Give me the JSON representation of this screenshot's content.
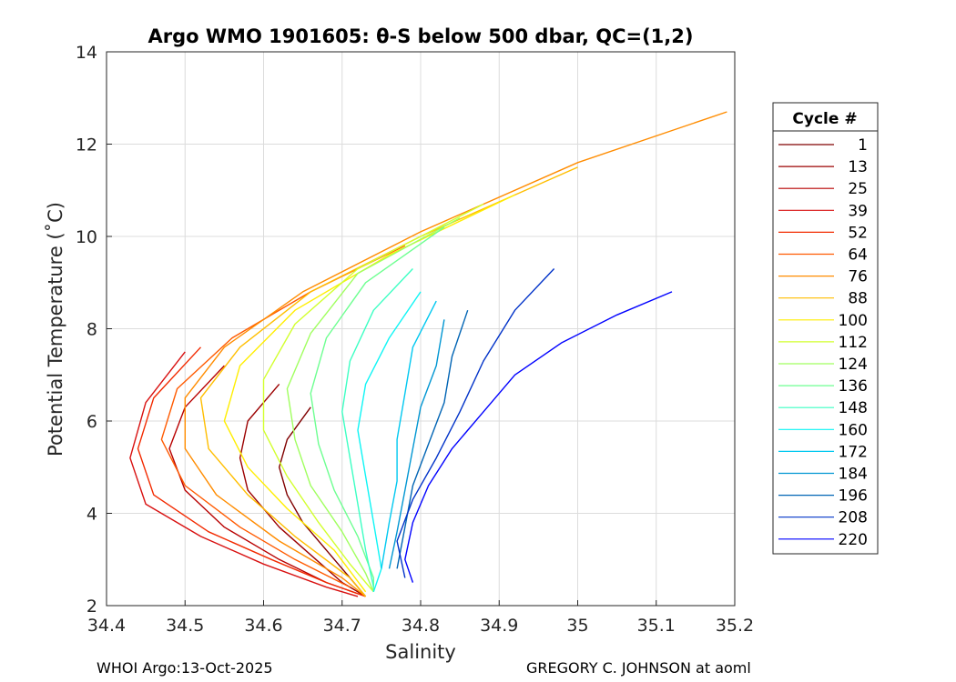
{
  "chart_data": {
    "type": "line",
    "title": "Argo WMO 1901605: θ-S below 500 dbar,  QC=(1,2)",
    "xlabel": "Salinity",
    "ylabel": "Potential Temperature (˚C)",
    "xlim": [
      34.4,
      35.2
    ],
    "ylim": [
      2,
      14
    ],
    "xticks": [
      34.4,
      34.5,
      34.6,
      34.7,
      34.8,
      34.9,
      35.0,
      35.1,
      35.2
    ],
    "xtick_labels": [
      "34.4",
      "34.5",
      "34.6",
      "34.7",
      "34.8",
      "34.9",
      "35",
      "35.1",
      "35.2"
    ],
    "yticks": [
      2,
      4,
      6,
      8,
      10,
      12,
      14
    ],
    "ytick_labels": [
      "2",
      "4",
      "6",
      "8",
      "10",
      "12",
      "14"
    ],
    "grid": true,
    "legend": {
      "title": "Cycle #",
      "placement": "right-outside",
      "entries": [
        {
          "label": "1",
          "color": "#800000"
        },
        {
          "label": "13",
          "color": "#9b0000"
        },
        {
          "label": "25",
          "color": "#b80000"
        },
        {
          "label": "39",
          "color": "#d81010"
        },
        {
          "label": "52",
          "color": "#f22a00"
        },
        {
          "label": "64",
          "color": "#ff5a00"
        },
        {
          "label": "76",
          "color": "#ff8c00"
        },
        {
          "label": "88",
          "color": "#ffbe00"
        },
        {
          "label": "100",
          "color": "#ffee00"
        },
        {
          "label": "112",
          "color": "#d2ff2d"
        },
        {
          "label": "124",
          "color": "#a0ff5f"
        },
        {
          "label": "136",
          "color": "#6eff91"
        },
        {
          "label": "148",
          "color": "#3cffc3"
        },
        {
          "label": "160",
          "color": "#0ef5f5"
        },
        {
          "label": "172",
          "color": "#00c8f0"
        },
        {
          "label": "184",
          "color": "#0096d2"
        },
        {
          "label": "196",
          "color": "#0064b4"
        },
        {
          "label": "208",
          "color": "#0032c8"
        },
        {
          "label": "220",
          "color": "#0000ff"
        }
      ]
    },
    "series": [
      {
        "color": "#800000",
        "points": [
          [
            34.66,
            6.3
          ],
          [
            34.63,
            5.6
          ],
          [
            34.62,
            5.0
          ],
          [
            34.63,
            4.4
          ],
          [
            34.65,
            3.8
          ],
          [
            34.68,
            3.2
          ],
          [
            34.71,
            2.6
          ],
          [
            34.73,
            2.2
          ]
        ]
      },
      {
        "color": "#9b0000",
        "points": [
          [
            34.62,
            6.8
          ],
          [
            34.58,
            6.0
          ],
          [
            34.57,
            5.2
          ],
          [
            34.58,
            4.5
          ],
          [
            34.62,
            3.7
          ],
          [
            34.66,
            3.1
          ],
          [
            34.7,
            2.5
          ],
          [
            34.73,
            2.2
          ]
        ]
      },
      {
        "color": "#b80000",
        "points": [
          [
            34.55,
            7.2
          ],
          [
            34.5,
            6.3
          ],
          [
            34.48,
            5.4
          ],
          [
            34.5,
            4.5
          ],
          [
            34.55,
            3.7
          ],
          [
            34.62,
            3.0
          ],
          [
            34.68,
            2.5
          ],
          [
            34.73,
            2.2
          ]
        ]
      },
      {
        "color": "#d81010",
        "points": [
          [
            34.5,
            7.5
          ],
          [
            34.45,
            6.4
          ],
          [
            34.43,
            5.2
          ],
          [
            34.45,
            4.2
          ],
          [
            34.52,
            3.5
          ],
          [
            34.6,
            2.9
          ],
          [
            34.68,
            2.4
          ],
          [
            34.72,
            2.2
          ]
        ]
      },
      {
        "color": "#f22a00",
        "points": [
          [
            34.52,
            7.6
          ],
          [
            34.46,
            6.5
          ],
          [
            34.44,
            5.4
          ],
          [
            34.46,
            4.4
          ],
          [
            34.53,
            3.6
          ],
          [
            34.61,
            3.0
          ],
          [
            34.68,
            2.5
          ],
          [
            34.73,
            2.2
          ]
        ]
      },
      {
        "color": "#ff5a00",
        "points": [
          [
            34.78,
            9.8
          ],
          [
            34.66,
            8.8
          ],
          [
            34.56,
            7.8
          ],
          [
            34.49,
            6.7
          ],
          [
            34.47,
            5.6
          ],
          [
            34.5,
            4.6
          ],
          [
            34.57,
            3.7
          ],
          [
            34.64,
            3.0
          ],
          [
            34.71,
            2.4
          ]
        ]
      },
      {
        "color": "#ff8c00",
        "points": [
          [
            35.19,
            12.7
          ],
          [
            35.0,
            11.6
          ],
          [
            34.8,
            10.1
          ],
          [
            34.65,
            8.8
          ],
          [
            34.55,
            7.6
          ],
          [
            34.5,
            6.5
          ],
          [
            34.5,
            5.4
          ],
          [
            34.54,
            4.4
          ],
          [
            34.62,
            3.4
          ],
          [
            34.7,
            2.6
          ],
          [
            34.73,
            2.2
          ]
        ]
      },
      {
        "color": "#ffbe00",
        "points": [
          [
            35.0,
            11.5
          ],
          [
            34.8,
            10.0
          ],
          [
            34.66,
            8.8
          ],
          [
            34.57,
            7.6
          ],
          [
            34.52,
            6.5
          ],
          [
            34.53,
            5.4
          ],
          [
            34.58,
            4.4
          ],
          [
            34.64,
            3.5
          ],
          [
            34.71,
            2.6
          ],
          [
            34.73,
            2.2
          ]
        ]
      },
      {
        "color": "#ffee00",
        "points": [
          [
            34.92,
            10.9
          ],
          [
            34.76,
            9.6
          ],
          [
            34.64,
            8.4
          ],
          [
            34.57,
            7.2
          ],
          [
            34.55,
            6.0
          ],
          [
            34.58,
            5.0
          ],
          [
            34.63,
            4.1
          ],
          [
            34.69,
            3.2
          ],
          [
            34.73,
            2.3
          ]
        ]
      },
      {
        "color": "#d2ff2d",
        "points": [
          [
            34.88,
            10.7
          ],
          [
            34.72,
            9.3
          ],
          [
            34.64,
            8.1
          ],
          [
            34.6,
            6.9
          ],
          [
            34.6,
            5.8
          ],
          [
            34.63,
            4.8
          ],
          [
            34.67,
            3.8
          ],
          [
            34.71,
            2.9
          ],
          [
            34.74,
            2.3
          ]
        ]
      },
      {
        "color": "#a0ff5f",
        "points": [
          [
            34.85,
            10.4
          ],
          [
            34.72,
            9.2
          ],
          [
            34.66,
            7.9
          ],
          [
            34.63,
            6.7
          ],
          [
            34.64,
            5.6
          ],
          [
            34.66,
            4.6
          ],
          [
            34.7,
            3.6
          ],
          [
            34.73,
            2.7
          ],
          [
            34.74,
            2.3
          ]
        ]
      },
      {
        "color": "#6eff91",
        "points": [
          [
            34.83,
            10.2
          ],
          [
            34.73,
            9.0
          ],
          [
            34.68,
            7.8
          ],
          [
            34.66,
            6.6
          ],
          [
            34.67,
            5.5
          ],
          [
            34.69,
            4.5
          ],
          [
            34.72,
            3.5
          ],
          [
            34.74,
            2.6
          ],
          [
            34.74,
            2.3
          ]
        ]
      },
      {
        "color": "#3cffc3",
        "points": [
          [
            34.79,
            9.3
          ],
          [
            34.74,
            8.4
          ],
          [
            34.71,
            7.3
          ],
          [
            34.7,
            6.2
          ],
          [
            34.71,
            5.2
          ],
          [
            34.72,
            4.2
          ],
          [
            34.73,
            3.2
          ],
          [
            34.74,
            2.4
          ]
        ]
      },
      {
        "color": "#0ef5f5",
        "points": [
          [
            34.8,
            8.8
          ],
          [
            34.76,
            7.8
          ],
          [
            34.73,
            6.8
          ],
          [
            34.72,
            5.8
          ],
          [
            34.73,
            4.8
          ],
          [
            34.74,
            3.8
          ],
          [
            34.75,
            2.8
          ],
          [
            34.74,
            2.3
          ]
        ]
      },
      {
        "color": "#00c8f0",
        "points": [
          [
            34.82,
            8.6
          ],
          [
            34.79,
            7.6
          ],
          [
            34.78,
            6.6
          ],
          [
            34.77,
            5.6
          ],
          [
            34.77,
            4.7
          ],
          [
            34.76,
            3.8
          ],
          [
            34.75,
            2.8
          ]
        ]
      },
      {
        "color": "#0096d2",
        "points": [
          [
            34.83,
            8.2
          ],
          [
            34.82,
            7.2
          ],
          [
            34.8,
            6.3
          ],
          [
            34.79,
            5.4
          ],
          [
            34.78,
            4.5
          ],
          [
            34.77,
            3.6
          ],
          [
            34.76,
            2.8
          ]
        ]
      },
      {
        "color": "#0064b4",
        "points": [
          [
            34.86,
            8.4
          ],
          [
            34.84,
            7.4
          ],
          [
            34.83,
            6.4
          ],
          [
            34.81,
            5.5
          ],
          [
            34.79,
            4.6
          ],
          [
            34.78,
            3.7
          ],
          [
            34.77,
            2.8
          ]
        ]
      },
      {
        "color": "#0032c8",
        "points": [
          [
            34.97,
            9.3
          ],
          [
            34.92,
            8.4
          ],
          [
            34.88,
            7.3
          ],
          [
            34.85,
            6.2
          ],
          [
            34.82,
            5.2
          ],
          [
            34.79,
            4.3
          ],
          [
            34.77,
            3.4
          ],
          [
            34.78,
            2.6
          ]
        ]
      },
      {
        "color": "#0000ff",
        "points": [
          [
            35.12,
            8.8
          ],
          [
            35.05,
            8.3
          ],
          [
            34.98,
            7.7
          ],
          [
            34.92,
            7.0
          ],
          [
            34.88,
            6.2
          ],
          [
            34.84,
            5.4
          ],
          [
            34.81,
            4.6
          ],
          [
            34.79,
            3.8
          ],
          [
            34.78,
            3.0
          ],
          [
            34.79,
            2.5
          ]
        ]
      }
    ]
  },
  "footer": {
    "left": "WHOI Argo:13-Oct-2025",
    "right": "GREGORY C. JOHNSON at aoml"
  }
}
